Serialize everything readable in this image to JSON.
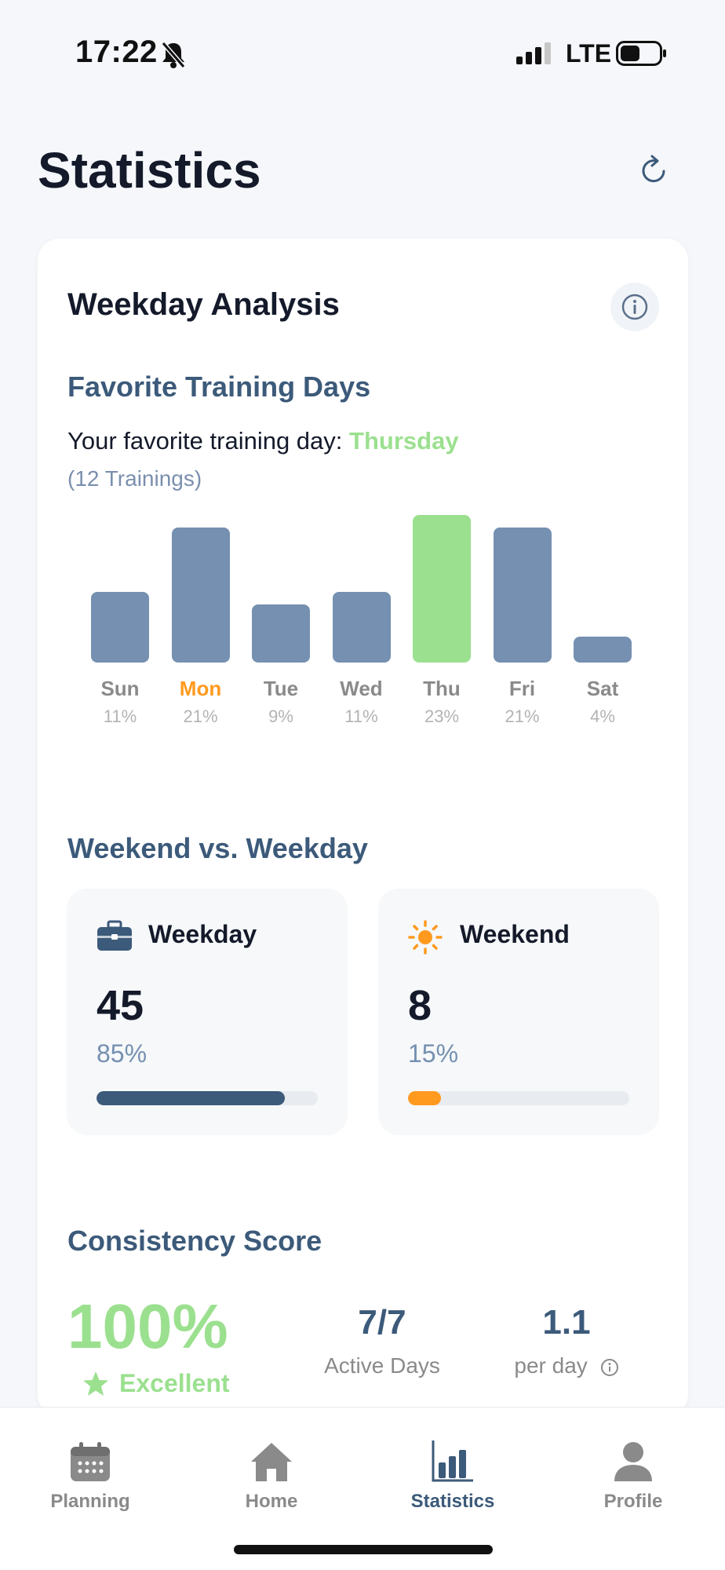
{
  "status_bar": {
    "time": "17:22",
    "network": "LTE"
  },
  "header": {
    "title": "Statistics"
  },
  "card": {
    "title": "Weekday Analysis"
  },
  "favorite": {
    "section_title": "Favorite Training Days",
    "line_prefix": "Your favorite training day:",
    "day": "Thursday",
    "count": "(12 Trainings)"
  },
  "chart_data": {
    "type": "bar",
    "categories": [
      "Sun",
      "Mon",
      "Tue",
      "Wed",
      "Thu",
      "Fri",
      "Sat"
    ],
    "percent_labels": [
      "11%",
      "21%",
      "9%",
      "11%",
      "23%",
      "21%",
      "4%"
    ],
    "values": [
      11,
      21,
      9,
      11,
      23,
      21,
      4
    ],
    "highlight_index": 4,
    "today_index": 1,
    "colors": {
      "bar": "#7590b0",
      "favorite": "#9be08f",
      "today_label": "#ff9a1f"
    }
  },
  "weekend_vs_weekday": {
    "section_title": "Weekend vs. Weekday",
    "weekday": {
      "label": "Weekday",
      "value": "45",
      "percent": "85%",
      "fill": 0.85,
      "icon": "briefcase-icon",
      "color": "#3c5a7a"
    },
    "weekend": {
      "label": "Weekend",
      "value": "8",
      "percent": "15%",
      "fill": 0.15,
      "icon": "sun-icon",
      "color": "#ff9a1f"
    }
  },
  "consistency": {
    "section_title": "Consistency Score",
    "score": "100%",
    "rating": "Excellent",
    "active_days_value": "7/7",
    "active_days_label": "Active Days",
    "per_day_value": "1.1",
    "per_day_label": "per day"
  },
  "tabs": [
    {
      "label": "Planning",
      "icon": "calendar-icon"
    },
    {
      "label": "Home",
      "icon": "home-icon"
    },
    {
      "label": "Statistics",
      "icon": "bar-chart-icon",
      "active": true
    },
    {
      "label": "Profile",
      "icon": "profile-icon"
    }
  ]
}
